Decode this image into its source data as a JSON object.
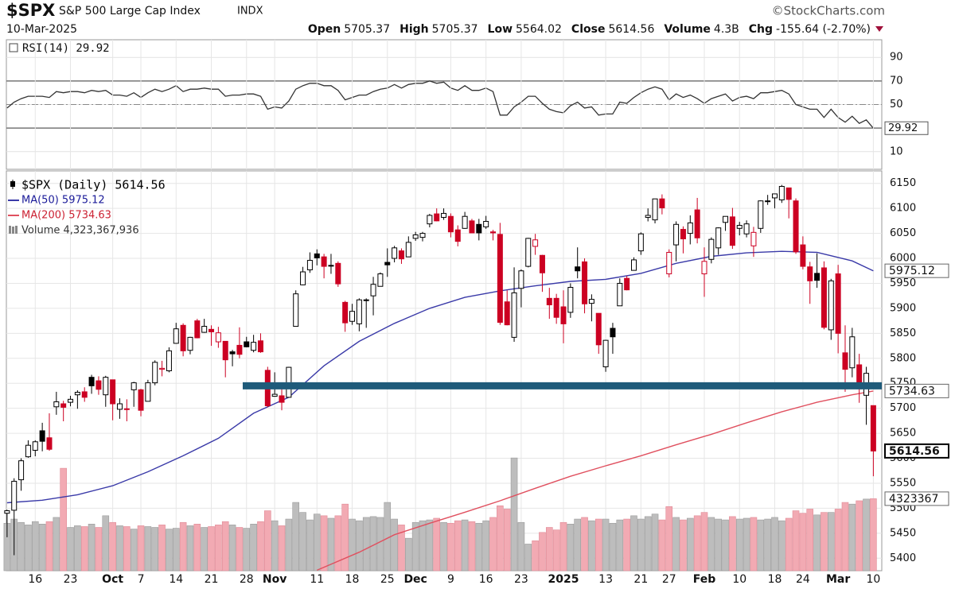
{
  "header": {
    "symbol": "$SPX",
    "name": "S&P 500 Large Cap Index",
    "exchange": "INDX",
    "date": "10-Mar-2025",
    "watermark": "©StockCharts.com",
    "quote": [
      {
        "label": "Open",
        "value": "5705.37"
      },
      {
        "label": "High",
        "value": "5705.37"
      },
      {
        "label": "Low",
        "value": "5564.02"
      },
      {
        "label": "Close",
        "value": "5614.56"
      },
      {
        "label": "Volume",
        "value": "4.3B"
      },
      {
        "label": "Chg",
        "value": "-155.64 (-2.70%)"
      }
    ]
  },
  "chart_data": [
    {
      "type": "line",
      "panel": "rsi",
      "legend": "RSI(14) 29.92",
      "xlim": [
        -0.1,
        124.2
      ],
      "ylim": [
        -5,
        105
      ],
      "yticks": [
        10,
        50,
        70,
        90
      ],
      "ref_lines": [
        30,
        70
      ],
      "mid_line": 50,
      "series": [
        {
          "name": "RSI(14)",
          "color": "#333333",
          "values": [
            47,
            52,
            55,
            57,
            57,
            57,
            56,
            61,
            60,
            61,
            61,
            60,
            62,
            61,
            62,
            58,
            58,
            57,
            60,
            56,
            60,
            63,
            61,
            63,
            66,
            61,
            63,
            63,
            64,
            63,
            63,
            57,
            58,
            58,
            59,
            59,
            57,
            46,
            48,
            47,
            53,
            63,
            66,
            68,
            68,
            66,
            66,
            62,
            54,
            56,
            58,
            58,
            61,
            63,
            64,
            67,
            64,
            67,
            68,
            68,
            70,
            68,
            69,
            64,
            62,
            66,
            62,
            62,
            64,
            61,
            41,
            41,
            48,
            52,
            57,
            57,
            51,
            46,
            44,
            43,
            49,
            52,
            47,
            48,
            41,
            42,
            42,
            52,
            51,
            56,
            60,
            63,
            65,
            63,
            54,
            59,
            56,
            58,
            55,
            51,
            55,
            57,
            59,
            53,
            56,
            57,
            55,
            60,
            60,
            61,
            62,
            59,
            50,
            48,
            46,
            46,
            39,
            46,
            39,
            35,
            40,
            34,
            37,
            29.92
          ]
        }
      ],
      "tags": [
        {
          "label": "29.92",
          "value": 29.92
        }
      ]
    },
    {
      "type": "candlestick",
      "panel": "price",
      "xlim": [
        -0.1,
        124.2
      ],
      "ylim": [
        5375,
        6175
      ],
      "vlim": [
        0,
        24000
      ],
      "yticks": [
        5400,
        5450,
        5500,
        5550,
        5600,
        5650,
        5700,
        5750,
        5800,
        5850,
        5900,
        5950,
        6000,
        6050,
        6100,
        6150
      ],
      "xticks": [
        {
          "value": 4,
          "label": "16"
        },
        {
          "value": 9,
          "label": "23"
        },
        {
          "value": 15,
          "label": "Oct"
        },
        {
          "value": 19,
          "label": "7"
        },
        {
          "value": 24,
          "label": "14"
        },
        {
          "value": 29,
          "label": "21"
        },
        {
          "value": 34,
          "label": "28"
        },
        {
          "value": 38,
          "label": "Nov"
        },
        {
          "value": 44,
          "label": "11"
        },
        {
          "value": 49,
          "label": "18"
        },
        {
          "value": 54,
          "label": "25"
        },
        {
          "value": 58,
          "label": "Dec"
        },
        {
          "value": 63,
          "label": "9"
        },
        {
          "value": 68,
          "label": "16"
        },
        {
          "value": 73,
          "label": "23"
        },
        {
          "value": 79,
          "label": "2025"
        },
        {
          "value": 85,
          "label": "13"
        },
        {
          "value": 90,
          "label": "21"
        },
        {
          "value": 94,
          "label": "27"
        },
        {
          "value": 99,
          "label": "Feb"
        },
        {
          "value": 104,
          "label": "10"
        },
        {
          "value": 109,
          "label": "18"
        },
        {
          "value": 113,
          "label": "24"
        },
        {
          "value": 118,
          "label": "Mar"
        },
        {
          "value": 123,
          "label": "10"
        }
      ],
      "legend": [
        {
          "text": "$SPX (Daily) 5614.56",
          "color": "#000000"
        },
        {
          "text": "MA(50) 5975.12",
          "color": "#1a1a99"
        },
        {
          "text": "MA(200) 5734.63",
          "color": "#cc2233"
        },
        {
          "text": "Volume 4,323,367,936",
          "color": "#333333"
        }
      ],
      "up_color": "#000000",
      "down_color": "#cc0022",
      "series": [
        {
          "name": "$SPX",
          "open": [
            5490,
            5496,
            5557,
            5603,
            5616,
            5655,
            5641,
            5703,
            5709,
            5712,
            5727,
            5733,
            5762,
            5755,
            5727,
            5757,
            5698,
            5698,
            5737,
            5737,
            5714,
            5751,
            5778,
            5775,
            5830,
            5866,
            5816,
            5875,
            5852,
            5858,
            5833,
            5834,
            5813,
            5826,
            5833,
            5816,
            5835,
            5776,
            5724,
            5725,
            5722,
            5864,
            5947,
            5977,
            6009,
            6003,
            5986,
            5990,
            5912,
            5874,
            5869,
            5917,
            5925,
            5944,
            5992,
            6000,
            6015,
            6003,
            6040,
            6042,
            6069,
            6089,
            6082,
            6084,
            6057,
            6060,
            6075,
            6068,
            6063,
            6053,
            6048,
            5913,
            5842,
            5940,
            5984,
            6024,
            6006,
            5920,
            5920,
            5903,
            5892,
            5983,
            5993,
            5910,
            5890,
            5783,
            5860,
            5905,
            5960,
            5976,
            6015,
            6082,
            6077,
            6119,
            5969,
            6027,
            6058,
            6050,
            6097,
            5969,
            5998,
            6021,
            6072,
            6083,
            6060,
            6049,
            6025,
            6060,
            6115,
            6121,
            6117,
            6141,
            6115,
            6027,
            5983,
            5970,
            5981,
            5857,
            5969,
            5811,
            5781,
            5787,
            5726,
            5705.37
          ],
          "high": [
            5497,
            5560,
            5600,
            5636,
            5636,
            5671,
            5690,
            5733,
            5715,
            5725,
            5736,
            5742,
            5767,
            5764,
            5765,
            5757,
            5720,
            5718,
            5753,
            5739,
            5757,
            5796,
            5795,
            5822,
            5871,
            5870,
            5843,
            5879,
            5879,
            5866,
            5863,
            5834,
            5817,
            5862,
            5843,
            5847,
            5850,
            5783,
            5772,
            5742,
            5783,
            5936,
            5983,
            6012,
            6018,
            6009,
            6009,
            5994,
            5915,
            5909,
            5920,
            5920,
            5963,
            5972,
            6020,
            6025,
            6020,
            6044,
            6053,
            6053,
            6089,
            6100,
            6100,
            6090,
            6066,
            6093,
            6079,
            6079,
            6085,
            6057,
            6071,
            5936,
            5982,
            5978,
            6041,
            6049,
            6007,
            5941,
            5929,
            5936,
            5950,
            6022,
            6000,
            5928,
            5890,
            5837,
            5871,
            5960,
            5965,
            6002,
            6052,
            6100,
            6119,
            6128,
            6018,
            6074,
            6064,
            6086,
            6121,
            6022,
            6042,
            6062,
            6084,
            6101,
            6073,
            6076,
            6063,
            6116,
            6127,
            6129,
            6147,
            6141,
            6120,
            6044,
            5993,
            6010,
            5994,
            5959,
            5987,
            5866,
            5861,
            5809,
            5783,
            5705.37
          ],
          "low": [
            5442,
            5406,
            5535,
            5601,
            5604,
            5614,
            5615,
            5687,
            5674,
            5704,
            5699,
            5713,
            5729,
            5727,
            5703,
            5676,
            5679,
            5674,
            5703,
            5684,
            5714,
            5746,
            5764,
            5772,
            5829,
            5804,
            5808,
            5840,
            5851,
            5825,
            5821,
            5762,
            5784,
            5800,
            5822,
            5812,
            5811,
            5702,
            5723,
            5696,
            5722,
            5864,
            5946,
            5971,
            5986,
            5960,
            5969,
            5943,
            5853,
            5867,
            5854,
            5861,
            5886,
            5944,
            5963,
            5992,
            5989,
            6003,
            6035,
            6034,
            6062,
            6074,
            6077,
            6042,
            6024,
            6059,
            6051,
            6036,
            6059,
            6036,
            5867,
            5866,
            5833,
            5902,
            5982,
            6007,
            5933,
            5879,
            5869,
            5830,
            5881,
            5960,
            5890,
            5874,
            5809,
            5773,
            5809,
            5905,
            5936,
            5976,
            6007,
            6074,
            6070,
            6088,
            5962,
            5994,
            6010,
            6028,
            6030,
            5923,
            5990,
            6007,
            6055,
            6019,
            6046,
            6042,
            6003,
            6051,
            6107,
            6100,
            6111,
            6080,
            6009,
            5978,
            5909,
            5941,
            5858,
            5837,
            5810,
            5733,
            5762,
            5711,
            5667,
            5564.02
          ],
          "close": [
            5495,
            5554,
            5595,
            5626,
            5633,
            5634,
            5618,
            5713,
            5702,
            5718,
            5732,
            5722,
            5745,
            5738,
            5762,
            5709,
            5709,
            5699,
            5751,
            5696,
            5751,
            5792,
            5780,
            5815,
            5859,
            5815,
            5842,
            5841,
            5864,
            5853,
            5851,
            5797,
            5809,
            5808,
            5823,
            5832,
            5813,
            5705,
            5728,
            5712,
            5782,
            5929,
            5973,
            5996,
            6001,
            5984,
            5985,
            5949,
            5871,
            5894,
            5917,
            5917,
            5948,
            5969,
            5987,
            6021,
            5999,
            6032,
            6047,
            6050,
            6086,
            6075,
            6090,
            6053,
            6034,
            6084,
            6051,
            6051,
            6074,
            6051,
            5872,
            5867,
            5931,
            5975,
            6040,
            6037,
            5971,
            5907,
            5882,
            5869,
            5942,
            5975,
            5909,
            5918,
            5827,
            5836,
            5843,
            5950,
            5937,
            5997,
            6049,
            6086,
            6119,
            6101,
            6012,
            6068,
            6039,
            6071,
            6041,
            5994,
            6038,
            6061,
            6084,
            6026,
            6066,
            6069,
            6052,
            6115,
            6115,
            6129,
            6144,
            6118,
            6013,
            5984,
            5955,
            5956,
            5862,
            5955,
            5850,
            5778,
            5843,
            5739,
            5770,
            5614.56
          ]
        }
      ],
      "ma": [
        {
          "name": "MA(50)",
          "color": "#3a3aa8",
          "x": [
            0,
            5,
            10,
            15,
            20,
            25,
            30,
            35,
            40,
            45,
            50,
            55,
            60,
            65,
            70,
            75,
            80,
            85,
            90,
            95,
            100,
            105,
            110,
            115,
            120,
            123
          ],
          "values": [
            5511,
            5516,
            5527,
            5545,
            5573,
            5605,
            5640,
            5690,
            5722,
            5785,
            5834,
            5870,
            5900,
            5922,
            5935,
            5945,
            5954,
            5958,
            5970,
            5990,
            6004,
            6011,
            6014,
            6012,
            5995,
            5975.12
          ]
        },
        {
          "name": "MA(200)",
          "color": "#e0505f",
          "x": [
            44,
            50,
            55,
            60,
            65,
            70,
            75,
            80,
            85,
            90,
            95,
            100,
            105,
            110,
            115,
            120,
            123
          ],
          "values": [
            5376,
            5412,
            5447,
            5470,
            5492,
            5515,
            5540,
            5564,
            5585,
            5605,
            5627,
            5648,
            5671,
            5693,
            5712,
            5727,
            5734.63
          ]
        }
      ],
      "volume": {
        "name": "Volume",
        "up_color": "#bdbdbd",
        "down_color": "#f2aab3",
        "values": [
          2850,
          3100,
          2900,
          2750,
          2950,
          2800,
          2950,
          3200,
          6150,
          2600,
          2700,
          2650,
          2800,
          2600,
          3300,
          2900,
          2700,
          2650,
          2500,
          2700,
          2650,
          2600,
          2750,
          2500,
          2550,
          2900,
          2700,
          2800,
          2600,
          2650,
          2750,
          2950,
          2750,
          2600,
          2550,
          2800,
          2950,
          3600,
          3000,
          2700,
          3100,
          4100,
          3500,
          3050,
          3400,
          3300,
          3150,
          3300,
          4000,
          3100,
          3000,
          3200,
          3250,
          3200,
          4100,
          3100,
          2750,
          1950,
          2900,
          3000,
          3050,
          3150,
          2900,
          2850,
          3000,
          3050,
          2950,
          2850,
          3000,
          3200,
          3900,
          3700,
          6770,
          2900,
          1600,
          1800,
          2300,
          2600,
          2450,
          2900,
          2800,
          3100,
          3200,
          3000,
          3100,
          3100,
          2850,
          3050,
          3100,
          3300,
          3100,
          3250,
          3400,
          3050,
          3850,
          3200,
          3050,
          3150,
          3300,
          3500,
          3200,
          3100,
          3050,
          3250,
          3100,
          3150,
          3200,
          3050,
          3100,
          3200,
          3000,
          3150,
          3600,
          3450,
          3700,
          3350,
          3500,
          3500,
          3700,
          4100,
          4000,
          4200,
          4300,
          4323.37
        ]
      },
      "annotation": {
        "value": 5745,
        "color": "#1f5b7a"
      },
      "tags": [
        {
          "label": "5975.12",
          "value": 5975.12,
          "series": "MA(50)"
        },
        {
          "label": "5734.63",
          "value": 5734.63,
          "series": "MA(200)"
        },
        {
          "label": "5614.56",
          "value": 5614.56,
          "series": "$SPX"
        },
        {
          "label": "4323367",
          "value": 4323.37,
          "series": "Volume"
        }
      ]
    }
  ]
}
